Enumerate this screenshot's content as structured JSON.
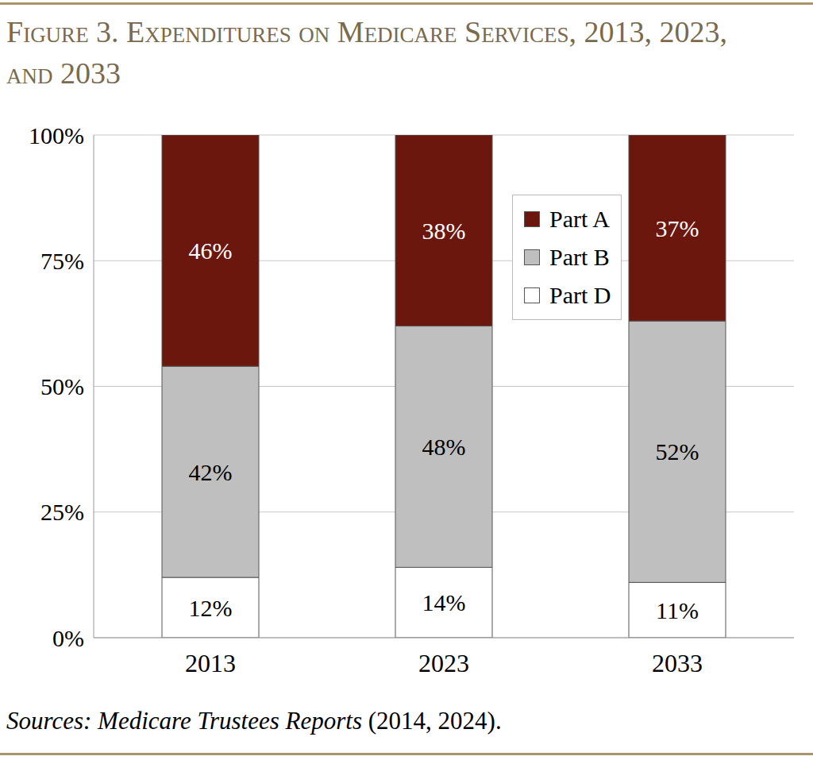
{
  "chart_data": {
    "type": "bar",
    "title": "Figure 3. Expenditures on Medicare Services, 2013, 2023, and 2033",
    "source": "Sources: Medicare Trustees Reports (2014, 2024).",
    "categories": [
      "2013",
      "2023",
      "2033"
    ],
    "series": [
      {
        "name": "Part A",
        "color": "#6b170e",
        "values": [
          46,
          38,
          37
        ],
        "value_labels": [
          "46%",
          "38%",
          "37%"
        ]
      },
      {
        "name": "Part B",
        "color": "#bfbfbf",
        "values": [
          42,
          48,
          52
        ],
        "value_labels": [
          "42%",
          "48%",
          "52%"
        ]
      },
      {
        "name": "Part D",
        "color": "#ffffff",
        "values": [
          12,
          14,
          11
        ],
        "value_labels": [
          "12%",
          "14%",
          "11%"
        ]
      }
    ],
    "ylim": [
      0,
      100
    ],
    "yticks": [
      {
        "value": 0,
        "label": "0%"
      },
      {
        "value": 25,
        "label": "25%"
      },
      {
        "value": 50,
        "label": "50%"
      },
      {
        "value": 75,
        "label": "75%"
      },
      {
        "value": 100,
        "label": "100%"
      }
    ],
    "grid": true,
    "stacked": true,
    "data_labels": true,
    "legend": "upper right"
  }
}
